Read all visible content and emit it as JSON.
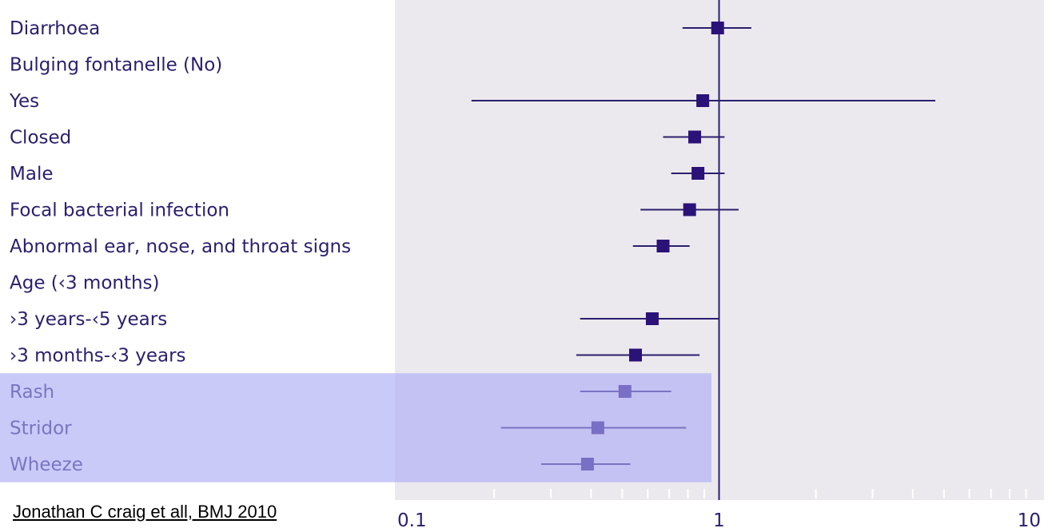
{
  "chart_data": {
    "type": "forest",
    "x_scale": "log",
    "xlim": [
      0.1,
      10
    ],
    "reference_line": 1,
    "x_ticks": [
      {
        "value": 0.1,
        "label": "0.1"
      },
      {
        "value": 1,
        "label": "1"
      },
      {
        "value": 10,
        "label": "10"
      }
    ],
    "x_minor_ticks": [
      0.2,
      0.3,
      0.4,
      0.5,
      0.6,
      0.7,
      0.8,
      0.9,
      2,
      3,
      4,
      5,
      6,
      7,
      8,
      9
    ],
    "rows": [
      {
        "label": "Diarrhoea",
        "estimate": 0.99,
        "lower": 0.77,
        "upper": 1.26
      },
      {
        "label": "Bulging fontanelle (No)",
        "estimate": null,
        "lower": null,
        "upper": null
      },
      {
        "label": " Yes",
        "estimate": 0.89,
        "lower": 0.17,
        "upper": 4.7
      },
      {
        "label": " Closed",
        "estimate": 0.84,
        "lower": 0.67,
        "upper": 1.04
      },
      {
        "label": "Male",
        "estimate": 0.86,
        "lower": 0.71,
        "upper": 1.04
      },
      {
        "label": "Focal bacterial infection",
        "estimate": 0.81,
        "lower": 0.57,
        "upper": 1.15
      },
      {
        "label": "Abnormal ear, nose, and throat signs",
        "estimate": 0.67,
        "lower": 0.54,
        "upper": 0.81
      },
      {
        "label": "Age (‹3 months)",
        "estimate": null,
        "lower": null,
        "upper": null
      },
      {
        "label": " ›3 years-‹5 years",
        "estimate": 0.62,
        "lower": 0.37,
        "upper": 1.0
      },
      {
        "label": " ›3 months-‹3 years",
        "estimate": 0.55,
        "lower": 0.36,
        "upper": 0.87
      },
      {
        "label": "Rash",
        "estimate": 0.51,
        "lower": 0.37,
        "upper": 0.71
      },
      {
        "label": "Stridor",
        "estimate": 0.42,
        "lower": 0.21,
        "upper": 0.79
      },
      {
        "label": "Wheeze",
        "estimate": 0.39,
        "lower": 0.28,
        "upper": 0.53
      }
    ],
    "highlighted_rows": [
      "Rash",
      "Stridor",
      "Wheeze"
    ],
    "colors": {
      "plot_bg": "#ece9ee",
      "marker": "#2a1278",
      "line": "#2a1f6e",
      "label": "#2a1f6e",
      "highlight": "#aaaaf5"
    }
  },
  "citation": "Jonathan C craig et all, BMJ 2010"
}
